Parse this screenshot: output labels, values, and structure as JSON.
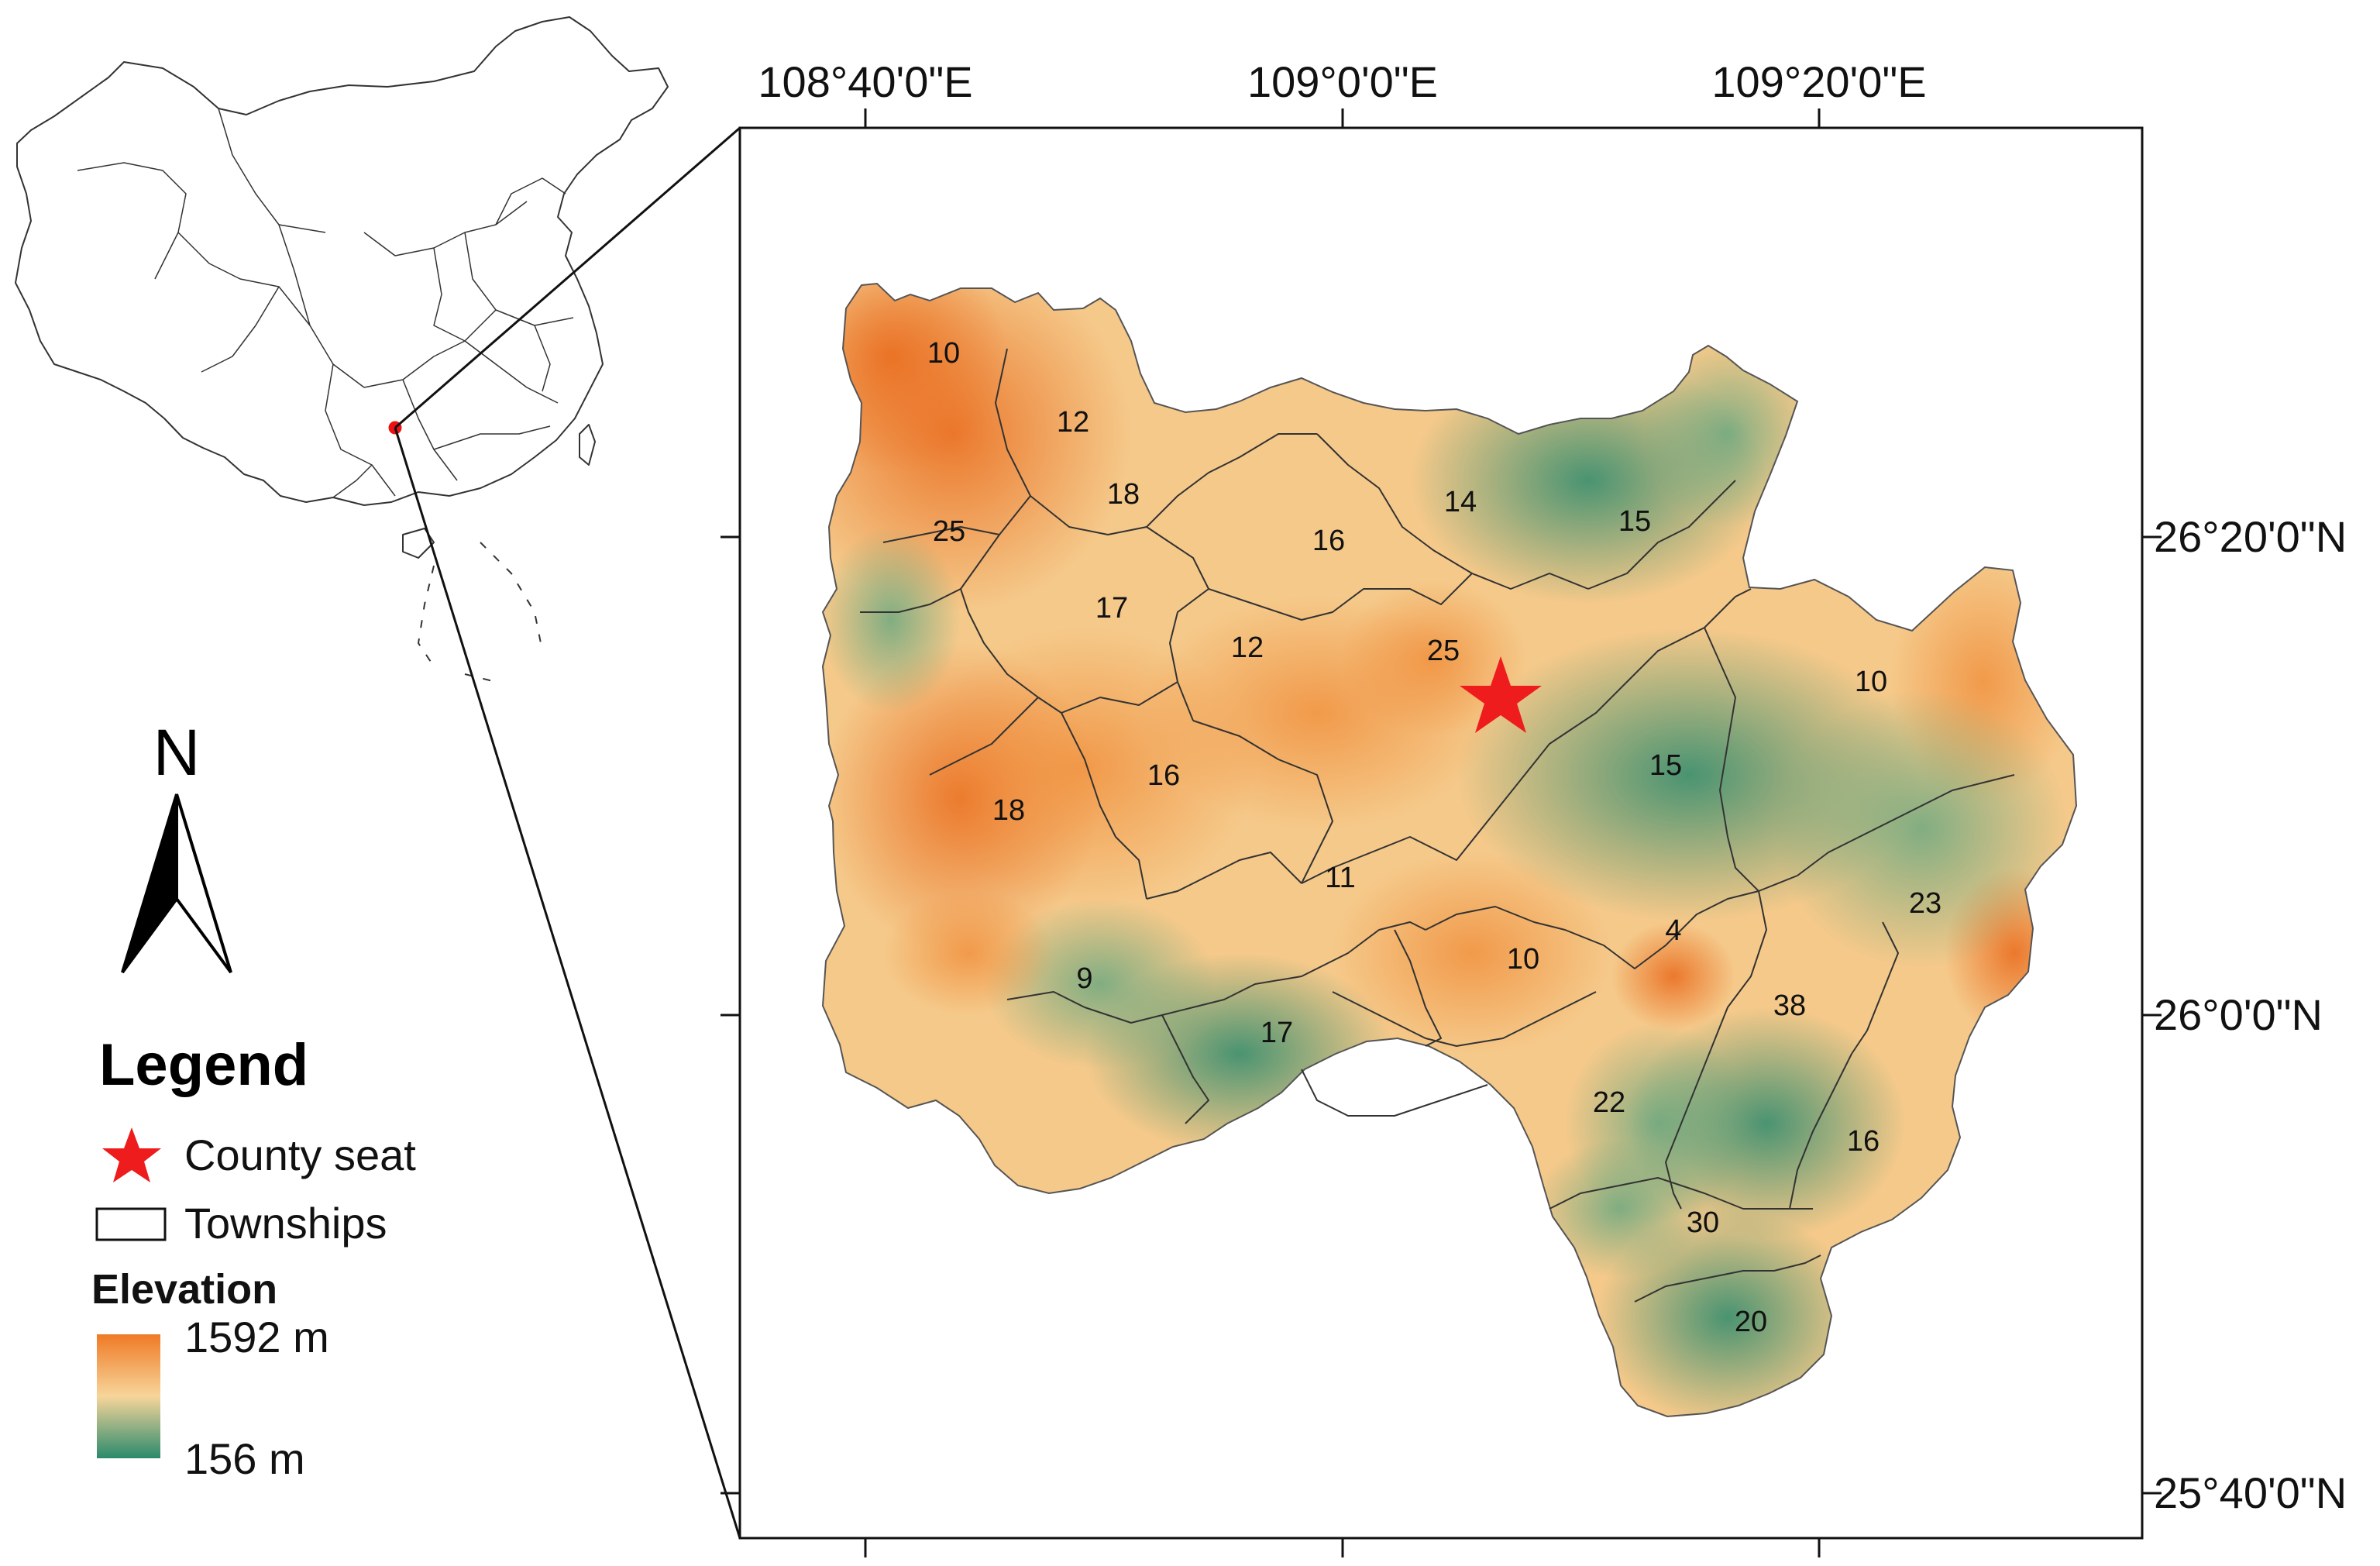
{
  "map": {
    "graticule": {
      "longitude_labels": [
        "108°40'0\"E",
        "109°0'0\"E",
        "109°20'0\"E"
      ],
      "latitude_labels": [
        "26°20'0\"N",
        "26°0'0\"N",
        "25°40'0\"N"
      ]
    },
    "county_seat_marker": "star",
    "township_labels": [
      "10",
      "12",
      "18",
      "25",
      "17",
      "16",
      "14",
      "15",
      "12",
      "25",
      "10",
      "15",
      "18",
      "16",
      "11",
      "23",
      "4",
      "10",
      "38",
      "9",
      "17",
      "22",
      "16",
      "30",
      "20"
    ]
  },
  "north_arrow": {
    "label": "N"
  },
  "legend": {
    "title": "Legend",
    "county_seat": "County seat",
    "townships": "Townships",
    "elevation_title": "Elevation",
    "elevation_max": "1592 m",
    "elevation_min": "156 m"
  },
  "colors": {
    "high_elevation": "#ef7a26",
    "mid_elevation": "#f7d28f",
    "low_elevation": "#2a8a6c",
    "county_seat": "#ee1c1c"
  }
}
